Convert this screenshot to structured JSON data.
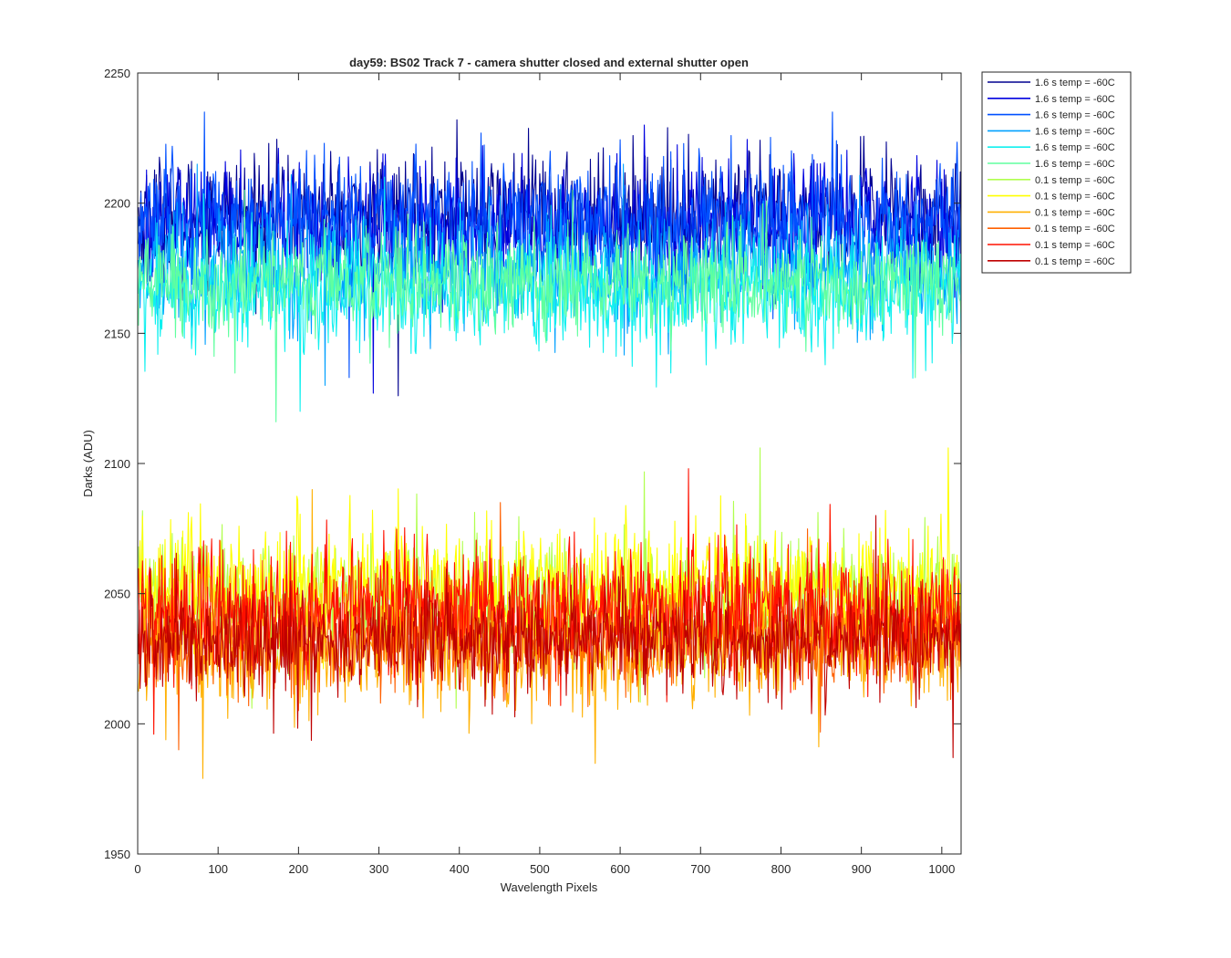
{
  "chart_data": {
    "type": "line",
    "title": "day59: BS02  Track 7 - camera shutter closed and external shutter open",
    "xlabel": "Wavelength Pixels",
    "ylabel": "Darks (ADU)",
    "xlim": [
      0,
      1024
    ],
    "ylim": [
      1950,
      2250
    ],
    "xticks": [
      0,
      100,
      200,
      300,
      400,
      500,
      600,
      700,
      800,
      900,
      1000
    ],
    "yticks": [
      1950,
      2000,
      2050,
      2100,
      2150,
      2200,
      2250
    ],
    "grid": false,
    "legend_position": "outside-top-right",
    "n_points_per_series": 1024,
    "series": [
      {
        "name": "1.6 s temp = -60C",
        "color": "#00008f",
        "mean": 2196,
        "spread": 11,
        "min": 2126,
        "max": 2232
      },
      {
        "name": "1.6 s temp = -60C",
        "color": "#0000df",
        "mean": 2192,
        "spread": 11,
        "min": 2127,
        "max": 2230
      },
      {
        "name": "1.6 s temp = -60C",
        "color": "#0050ff",
        "mean": 2194,
        "spread": 11,
        "min": 2133,
        "max": 2235
      },
      {
        "name": "1.6 s temp = -60C",
        "color": "#00a0ff",
        "mean": 2174,
        "spread": 11,
        "min": 2130,
        "max": 2215
      },
      {
        "name": "1.6 s temp = -60C",
        "color": "#10f0ef",
        "mean": 2166,
        "spread": 11,
        "min": 2120,
        "max": 2210
      },
      {
        "name": "1.6 s temp = -60C",
        "color": "#60ff9f",
        "mean": 2170,
        "spread": 10,
        "min": 2116,
        "max": 2205
      },
      {
        "name": "0.1 s temp = -60C",
        "color": "#b0ff4f",
        "mean": 2048,
        "spread": 12,
        "min": 2006,
        "max": 2106
      },
      {
        "name": "0.1 s temp = -60C",
        "color": "#ffff00",
        "mean": 2052,
        "spread": 12,
        "min": 2010,
        "max": 2106
      },
      {
        "name": "0.1 s temp = -60C",
        "color": "#ffb000",
        "mean": 2030,
        "spread": 11,
        "min": 1979,
        "max": 2090
      },
      {
        "name": "0.1 s temp = -60C",
        "color": "#ff6000",
        "mean": 2034,
        "spread": 11,
        "min": 1990,
        "max": 2085
      },
      {
        "name": "0.1 s temp = -60C",
        "color": "#ff1000",
        "mean": 2044,
        "spread": 12,
        "min": 1996,
        "max": 2098
      },
      {
        "name": "0.1 s temp = -60C",
        "color": "#bf0000",
        "mean": 2032,
        "spread": 10,
        "min": 1987,
        "max": 2080
      }
    ]
  }
}
